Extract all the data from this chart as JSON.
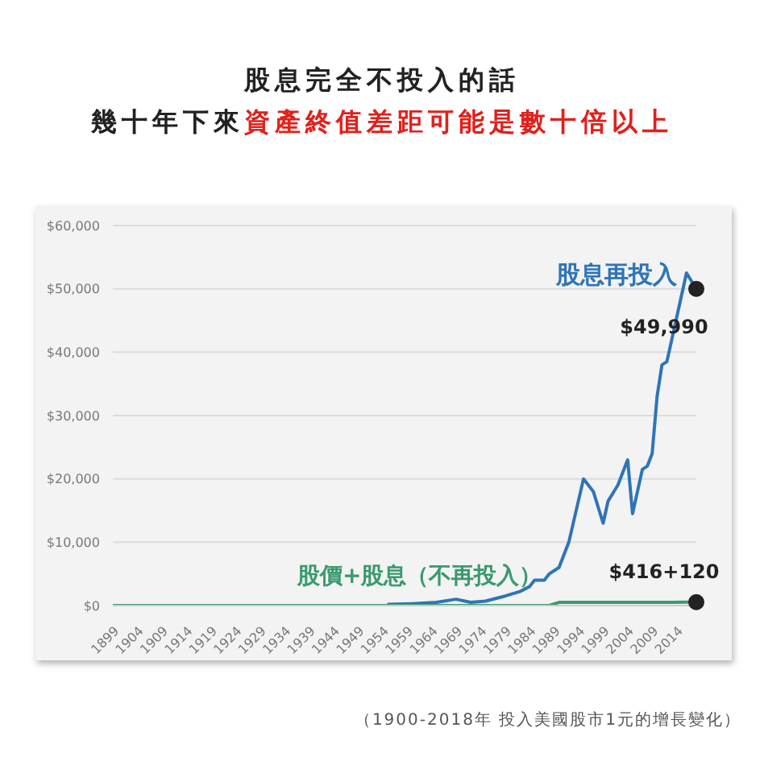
{
  "chart_data": {
    "type": "line",
    "title": "股息完全不投入的話",
    "subtitle": "幾十年下來資產終值差距可能是數十倍以上",
    "x": [
      1899,
      1905,
      1910,
      1920,
      1930,
      1940,
      1950,
      1955,
      1960,
      1965,
      1969,
      1972,
      1975,
      1979,
      1982,
      1984,
      1985,
      1987,
      1988,
      1990,
      1992,
      1995,
      1997,
      1999,
      2000,
      2002,
      2004,
      2005,
      2007,
      2008,
      2009,
      2010,
      2011,
      2012,
      2013,
      2016,
      2018
    ],
    "series": [
      {
        "name": "股息再投入",
        "color": "#2e75b6",
        "values": [
          null,
          null,
          null,
          null,
          null,
          null,
          null,
          200,
          300,
          500,
          1000,
          500,
          700,
          1500,
          2200,
          3000,
          4000,
          4000,
          5000,
          6000,
          10000,
          20000,
          18000,
          13000,
          16500,
          19000,
          23000,
          14500,
          21500,
          22000,
          24000,
          33000,
          38000,
          38500,
          42000,
          52500,
          49990
        ]
      },
      {
        "name": "股價+股息（不再投入）",
        "color": "#3a9a6e",
        "values": [
          0,
          0,
          0,
          0,
          0,
          0,
          0,
          0,
          0,
          0,
          0,
          0,
          0,
          0,
          0,
          0,
          0,
          0,
          0,
          500,
          500,
          500,
          500,
          500,
          500,
          500,
          500,
          500,
          500,
          500,
          500,
          500,
          500,
          500,
          500,
          536,
          536
        ]
      }
    ],
    "xlim": [
      1899,
      2018
    ],
    "xticks": [
      1899,
      1904,
      1909,
      1914,
      1919,
      1924,
      1929,
      1934,
      1939,
      1944,
      1949,
      1954,
      1959,
      1964,
      1969,
      1974,
      1979,
      1984,
      1989,
      1994,
      1999,
      2004,
      2009,
      2014
    ],
    "ylim": [
      0,
      60000
    ],
    "yticks": [
      {
        "value": 0,
        "label": "$0"
      },
      {
        "value": 10000,
        "label": "$10,000"
      },
      {
        "value": 20000,
        "label": "$20,000"
      },
      {
        "value": 30000,
        "label": "$30,000"
      },
      {
        "value": 40000,
        "label": "$40,000"
      },
      {
        "value": 50000,
        "label": "$50,000"
      },
      {
        "value": 60000,
        "label": "$60,000"
      }
    ],
    "grid": "y",
    "marker": "none",
    "line_style": "solid",
    "annotations": [
      {
        "text": "$49,990",
        "x": 2018,
        "y": 49990
      },
      {
        "text": "$416+120",
        "x": 2018,
        "y": 536
      },
      "（1900-2018年 投入美國股市1元的增長變化）"
    ]
  }
}
